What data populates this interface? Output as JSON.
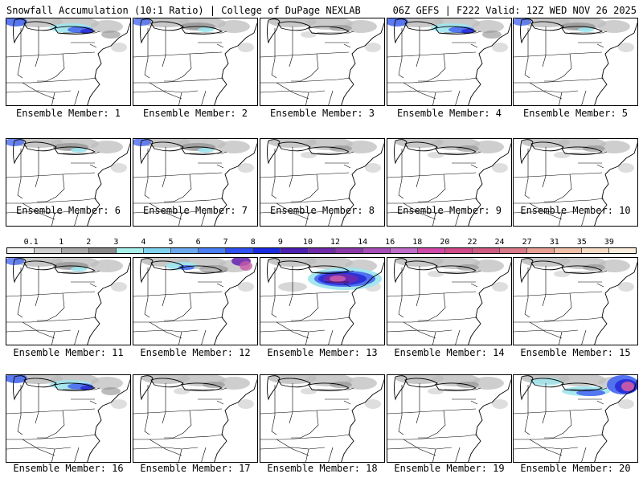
{
  "header": {
    "left": "Snowfall Accumulation (10:1 Ratio) | College of DuPage NEXLAB",
    "right": "06Z GEFS | F222 Valid: 12Z WED NOV 26 2025"
  },
  "panels": [
    {
      "label": "Ensemble Member: 1",
      "snow": "heavy-north"
    },
    {
      "label": "Ensemble Member: 2",
      "snow": "moderate-north"
    },
    {
      "label": "Ensemble Member: 3",
      "snow": "light-north"
    },
    {
      "label": "Ensemble Member: 4",
      "snow": "heavy-north"
    },
    {
      "label": "Ensemble Member: 5",
      "snow": "moderate-north"
    },
    {
      "label": "Ensemble Member: 6",
      "snow": "moderate-north"
    },
    {
      "label": "Ensemble Member: 7",
      "snow": "moderate-north"
    },
    {
      "label": "Ensemble Member: 8",
      "snow": "light-north"
    },
    {
      "label": "Ensemble Member: 9",
      "snow": "light-north"
    },
    {
      "label": "Ensemble Member: 10",
      "snow": "light-north"
    },
    {
      "label": "Ensemble Member: 11",
      "snow": "moderate-north"
    },
    {
      "label": "Ensemble Member: 12",
      "snow": "heavy-northeast"
    },
    {
      "label": "Ensemble Member: 13",
      "snow": "very-heavy-north"
    },
    {
      "label": "Ensemble Member: 14",
      "snow": "light-north"
    },
    {
      "label": "Ensemble Member: 15",
      "snow": "light-north"
    },
    {
      "label": "Ensemble Member: 16",
      "snow": "heavy-north"
    },
    {
      "label": "Ensemble Member: 17",
      "snow": "light-north"
    },
    {
      "label": "Ensemble Member: 18",
      "snow": "light-north"
    },
    {
      "label": "Ensemble Member: 19",
      "snow": "light-north"
    },
    {
      "label": "Ensemble Member: 20",
      "snow": "very-heavy-northeast"
    }
  ],
  "colorbar": {
    "levels": [
      "0.1",
      "1",
      "2",
      "3",
      "4",
      "5",
      "6",
      "7",
      "8",
      "9",
      "10",
      "12",
      "14",
      "16",
      "18",
      "20",
      "22",
      "24",
      "27",
      "31",
      "35",
      "39"
    ],
    "colors": [
      "#f2f2f2",
      "#cfcfcf",
      "#a9a9a9",
      "#8a8a8a",
      "#a8f0ec",
      "#7fd3f0",
      "#6aa8f0",
      "#4a7ef5",
      "#2f50f0",
      "#1a2ae0",
      "#4b1fb0",
      "#6e2aa8",
      "#8a3aa8",
      "#a64fb8",
      "#bf6dc8",
      "#cf4aa8",
      "#d04a8a",
      "#cf5a82",
      "#d97a8a",
      "#e8a095",
      "#f0c0a8",
      "#f6dcc4",
      "#fbeedd"
    ]
  }
}
